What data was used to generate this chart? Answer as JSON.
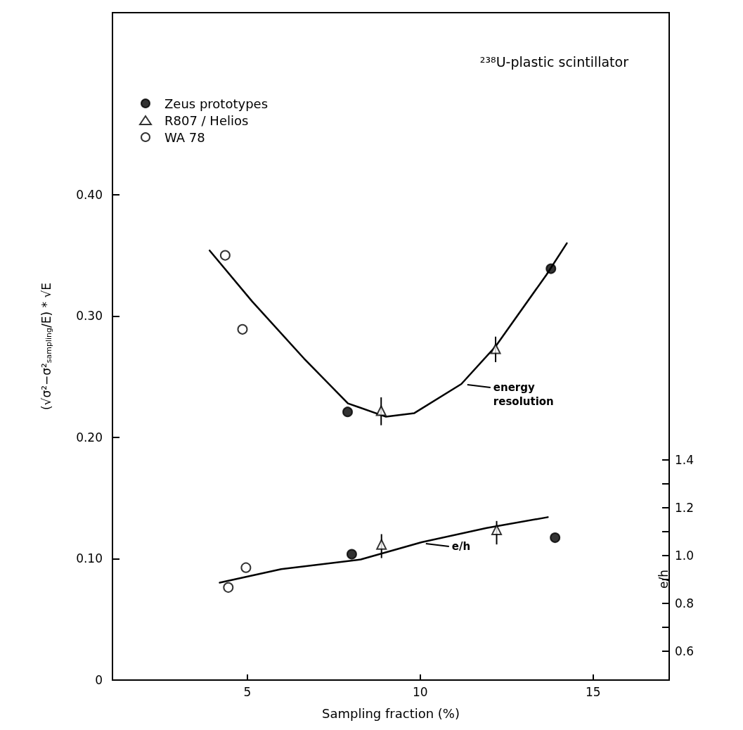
{
  "chart_data": {
    "type": "scatter",
    "title": "²³⁸U-plastic scintillator",
    "xlabel": "Sampling fraction (%)",
    "ylabel": "(√σ²−σ²$_{sampling}$/E) * √E",
    "y2label": "e/h",
    "xlim": [
      1.1,
      17.2
    ],
    "xticks": [
      5,
      10,
      15
    ],
    "ylim": [
      0,
      0.55
    ],
    "yticks": [
      0,
      {
        "value": 0.1,
        "label": "0.10"
      },
      {
        "value": 0.2,
        "label": "0.20"
      },
      {
        "value": 0.3,
        "label": "0.30"
      },
      {
        "value": 0.4,
        "label": "0.40"
      }
    ],
    "y2lim": [
      0.48,
      3.27
    ],
    "y2ticks": [
      0.6,
      {
        "value": 0.7,
        "label": null
      },
      0.8,
      {
        "value": 0.9,
        "label": null
      },
      {
        "value": 1.0,
        "label": "1.0"
      },
      {
        "value": 1.1,
        "label": null
      },
      1.2,
      {
        "value": 1.3,
        "label": null
      },
      1.4
    ],
    "grid": false,
    "legend": "top left",
    "series": [
      {
        "name": "Zeus prototypes",
        "color": "#000000",
        "marker": "circle",
        "x": [
          7.9,
          13.78
        ],
        "values": [
          0.221,
          0.339
        ]
      },
      {
        "name": "R807 / Helios",
        "color": "#000000",
        "marker": "triangle",
        "x": [
          8.87,
          12.18
        ],
        "values": [
          0.222,
          0.273
        ],
        "errors": [
          [
            0.21,
            0.233
          ],
          [
            0.262,
            0.283
          ]
        ]
      },
      {
        "name": "WA 78",
        "color": "#000000",
        "marker": "open circle",
        "x": [
          4.36,
          4.86
        ],
        "values": [
          0.35,
          0.289
        ]
      },
      {
        "type": "line",
        "color": "#000000",
        "marker": "none",
        "x": [
          3.91,
          5.14,
          6.64,
          7.91,
          9.01,
          9.83,
          11.19,
          12.18,
          13.65,
          14.24
        ],
        "values": [
          0.354,
          0.312,
          0.265,
          0.228,
          0.217,
          0.22,
          0.244,
          0.275,
          0.334,
          0.36
        ]
      },
      {
        "axis": "y2",
        "color": "#000000",
        "marker": "circle",
        "x": [
          8.02,
          13.9
        ],
        "values": [
          1.006,
          1.075
        ]
      },
      {
        "axis": "y2",
        "color": "#000000",
        "marker": "triangle",
        "x": [
          8.88,
          12.21
        ],
        "values": [
          1.047,
          1.108
        ],
        "errors": [
          [
            0.99,
            1.09
          ],
          [
            1.047,
            1.145
          ]
        ]
      },
      {
        "axis": "y2",
        "color": "#000000",
        "marker": "open circle",
        "x": [
          4.45,
          4.96
        ],
        "values": [
          0.867,
          0.95
        ]
      },
      {
        "type": "line",
        "axis": "y2",
        "color": "#000000",
        "marker": "none",
        "x": [
          4.2,
          5.98,
          8.28,
          10.04,
          11.92,
          13.69
        ],
        "values": [
          0.887,
          0.944,
          0.984,
          1.056,
          1.116,
          1.161
        ]
      }
    ],
    "annotations": [
      {
        "text": "energy\nresolution",
        "x": 11.2,
        "y": 0.244
      },
      {
        "text": "e/h",
        "x": 10.0,
        "y": 0.113
      }
    ]
  }
}
